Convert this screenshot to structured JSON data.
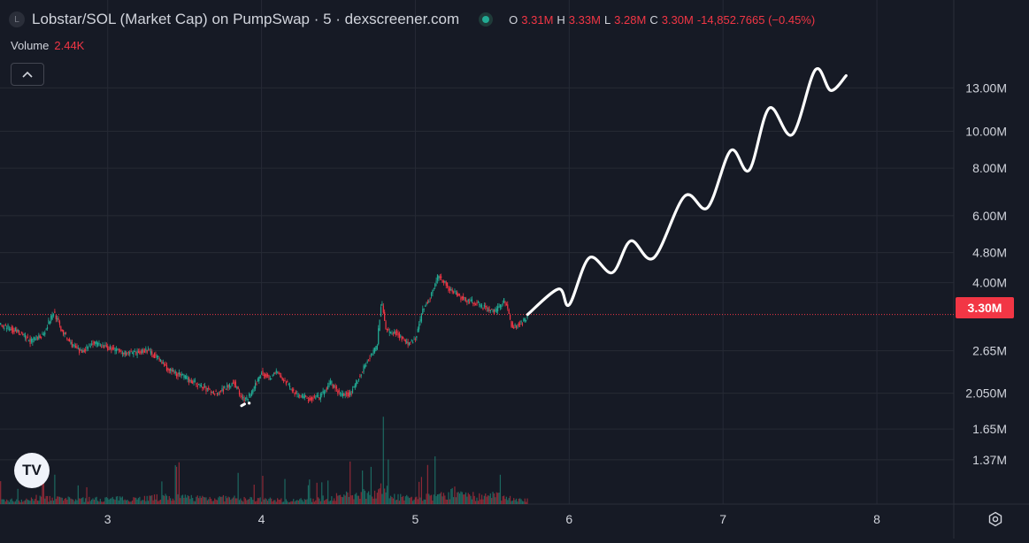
{
  "header": {
    "symbol_badge": "L",
    "title": "Lobstar/SOL (Market Cap) on PumpSwap · 5 · dexscreener.com",
    "ohlc": {
      "o_label": "O",
      "o_value": "3.31M",
      "h_label": "H",
      "h_value": "3.33M",
      "l_label": "L",
      "l_value": "3.28M",
      "c_label": "C",
      "c_value": "3.30M",
      "change": "-14,852.7665 (−0.45%)"
    }
  },
  "volume": {
    "label": "Volume",
    "value": "2.44K"
  },
  "controls": {
    "collapse_icon": "chevron-up-icon",
    "settings_icon": "settings-icon",
    "logo": "tradingview-logo"
  },
  "logo_text": "TV",
  "price_badge": "3.30M",
  "colors": {
    "up": "#22ab94",
    "down": "#f23645",
    "background": "#161a25",
    "grid": "#262a35",
    "text": "#d1d4dc",
    "drawing": "#ffffff"
  },
  "chart_data": {
    "type": "candlestick",
    "interval": "5",
    "x_ticks": [
      "3",
      "4",
      "5",
      "6",
      "7",
      "8"
    ],
    "y_ticks": [
      "13.00M",
      "10.00M",
      "8.00M",
      "6.00M",
      "4.80M",
      "4.00M",
      "2.65M",
      "2.050M",
      "1.65M",
      "1.37M"
    ],
    "y_scale": "log",
    "current_price": 3.3,
    "xlim": [
      2.3,
      8.5
    ],
    "ylim": [
      1.37,
      13.0
    ],
    "price_series": [
      [
        2.3,
        3.1
      ],
      [
        2.4,
        3.0
      ],
      [
        2.5,
        2.8
      ],
      [
        2.58,
        2.93
      ],
      [
        2.65,
        3.35
      ],
      [
        2.7,
        3.0
      ],
      [
        2.75,
        2.8
      ],
      [
        2.82,
        2.62
      ],
      [
        2.9,
        2.78
      ],
      [
        3.0,
        2.7
      ],
      [
        3.1,
        2.62
      ],
      [
        3.18,
        2.6
      ],
      [
        3.25,
        2.67
      ],
      [
        3.32,
        2.55
      ],
      [
        3.4,
        2.35
      ],
      [
        3.48,
        2.28
      ],
      [
        3.55,
        2.2
      ],
      [
        3.62,
        2.12
      ],
      [
        3.7,
        2.05
      ],
      [
        3.75,
        2.1
      ],
      [
        3.82,
        2.2
      ],
      [
        3.86,
        2.02
      ],
      [
        3.9,
        1.96
      ],
      [
        3.95,
        2.1
      ],
      [
        4.0,
        2.33
      ],
      [
        4.05,
        2.25
      ],
      [
        4.1,
        2.33
      ],
      [
        4.15,
        2.2
      ],
      [
        4.22,
        2.05
      ],
      [
        4.3,
        1.98
      ],
      [
        4.38,
        2.0
      ],
      [
        4.45,
        2.18
      ],
      [
        4.52,
        2.02
      ],
      [
        4.58,
        2.05
      ],
      [
        4.64,
        2.28
      ],
      [
        4.7,
        2.55
      ],
      [
        4.75,
        2.7
      ],
      [
        4.78,
        3.6
      ],
      [
        4.81,
        3.0
      ],
      [
        4.88,
        2.95
      ],
      [
        4.95,
        2.75
      ],
      [
        5.0,
        2.85
      ],
      [
        5.05,
        3.4
      ],
      [
        5.1,
        3.7
      ],
      [
        5.15,
        4.2
      ],
      [
        5.22,
        3.85
      ],
      [
        5.3,
        3.65
      ],
      [
        5.38,
        3.55
      ],
      [
        5.45,
        3.45
      ],
      [
        5.52,
        3.35
      ],
      [
        5.58,
        3.6
      ],
      [
        5.63,
        3.05
      ],
      [
        5.7,
        3.15
      ],
      [
        5.73,
        3.28
      ]
    ],
    "volume_series": [
      [
        2.5,
        40
      ],
      [
        2.8,
        30
      ],
      [
        3.1,
        35
      ],
      [
        3.4,
        45
      ],
      [
        3.7,
        40
      ],
      [
        4.0,
        30
      ],
      [
        4.3,
        25
      ],
      [
        4.6,
        60
      ],
      [
        4.75,
        80
      ],
      [
        4.79,
        98
      ],
      [
        4.85,
        55
      ],
      [
        5.0,
        35
      ],
      [
        5.2,
        60
      ],
      [
        5.3,
        85
      ],
      [
        5.4,
        45
      ],
      [
        5.55,
        55
      ],
      [
        5.65,
        30
      ],
      [
        5.73,
        25
      ]
    ],
    "drawn_projection": [
      [
        5.73,
        3.3
      ],
      [
        5.93,
        3.85
      ],
      [
        6.0,
        3.5
      ],
      [
        6.13,
        4.65
      ],
      [
        6.28,
        4.25
      ],
      [
        6.4,
        5.15
      ],
      [
        6.55,
        4.65
      ],
      [
        6.75,
        6.75
      ],
      [
        6.9,
        6.3
      ],
      [
        7.05,
        8.9
      ],
      [
        7.17,
        7.9
      ],
      [
        7.3,
        11.5
      ],
      [
        7.45,
        9.8
      ],
      [
        7.6,
        14.5
      ],
      [
        7.7,
        12.8
      ],
      [
        7.8,
        14.0
      ]
    ]
  }
}
